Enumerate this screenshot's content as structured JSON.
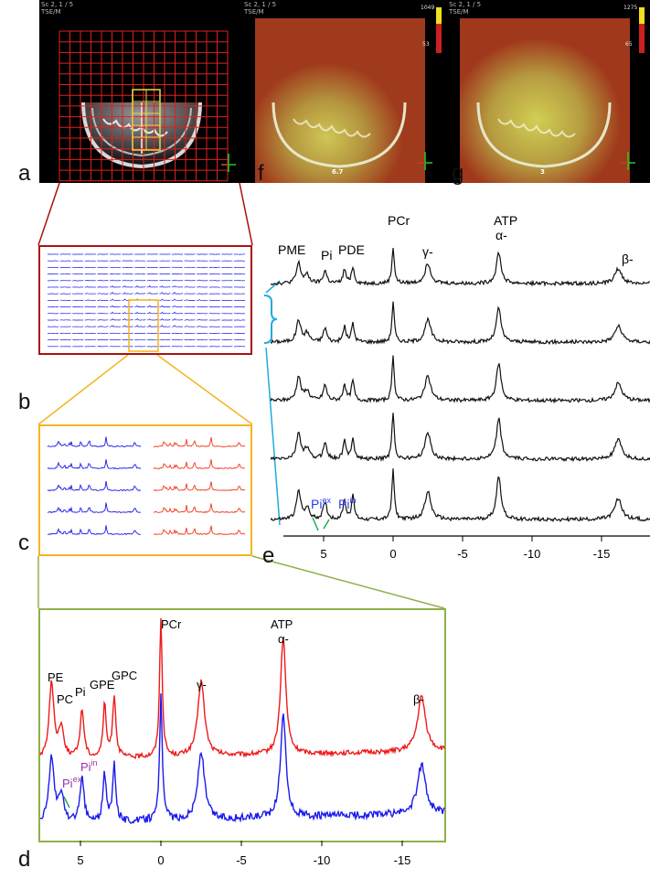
{
  "panels": {
    "a": {
      "letter": "a",
      "header": "Sc 2, 1 / 5\nTSE/M"
    },
    "f": {
      "letter": "f",
      "header": "Sc 2, 1 / 5\nTSE/M",
      "cbar_max": "1049",
      "cbar_min": "53",
      "slice": "6.7"
    },
    "g": {
      "letter": "g",
      "header": "Sc 2, 1 / 5\nTSE/M",
      "cbar_max": "1275",
      "cbar_min": "65",
      "slice": "3"
    },
    "b": {
      "letter": "b"
    },
    "c": {
      "letter": "c"
    },
    "d": {
      "letter": "d"
    },
    "e": {
      "letter": "e"
    }
  },
  "spectrum_e": {
    "peaks": {
      "pme": "PME",
      "pi": "Pi",
      "pde": "PDE",
      "pcr": "PCr",
      "atp": "ATP",
      "gamma": "γ-",
      "alpha": "α-",
      "beta": "β-"
    },
    "pi_ex": "Pi",
    "pi_ex_sup": "ex",
    "pi_in": "Pi",
    "pi_in_sup": "in",
    "x_ticks": [
      "5",
      "0",
      "-5",
      "-10",
      "-15"
    ]
  },
  "spectrum_d": {
    "peaks": {
      "pe": "PE",
      "pc": "PC",
      "pi": "Pi",
      "gpe": "GPE",
      "gpc": "GPC",
      "pcr": "PCr",
      "atp": "ATP",
      "gamma": "γ-",
      "alpha": "α-",
      "beta": "β-"
    },
    "pi_ex": "Pi",
    "pi_ex_sup": "ex",
    "pi_in": "Pi",
    "pi_in_sup": "in",
    "x_ticks": [
      "5",
      "0",
      "-5",
      "-10",
      "-15"
    ]
  },
  "colors": {
    "grid_red": "#e02020",
    "voi_yellow": "#e8d84a",
    "blue_trace": "#1a1aee",
    "red_trace": "#ee1a1a",
    "orange_box": "#f5b41e",
    "green_box": "#8fb04a",
    "cyan_bracket": "#22aadd",
    "pi_label_blue": "#2a3aff",
    "pi_label_purple": "#9933aa",
    "pi_marker_green": "#22aa55"
  }
}
